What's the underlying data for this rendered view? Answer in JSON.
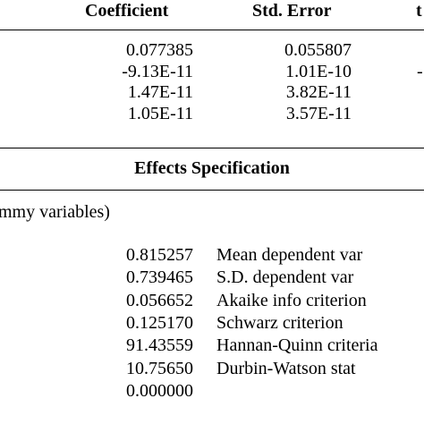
{
  "table": {
    "header": [
      "Coefficient",
      "Std. Error",
      "t"
    ],
    "rows": [
      [
        "0.077385",
        "0.055807"
      ],
      [
        "-9.13E-11",
        "1.01E-10",
        "-"
      ],
      [
        "1.47E-11",
        "3.82E-11"
      ],
      [
        "1.05E-11",
        "3.57E-11"
      ]
    ]
  },
  "effects": {
    "title": "Effects Specification",
    "note": "mmy variables)"
  },
  "stats": [
    [
      "0.815257",
      "Mean dependent var"
    ],
    [
      "0.739465",
      "S.D. dependent var"
    ],
    [
      "0.056652",
      "Akaike info criterion"
    ],
    [
      "0.125170",
      "Schwarz criterion"
    ],
    [
      "91.43559",
      "Hannan-Quinn criteria"
    ],
    [
      "10.75650",
      "Durbin-Watson stat"
    ],
    [
      "0.000000"
    ]
  ]
}
